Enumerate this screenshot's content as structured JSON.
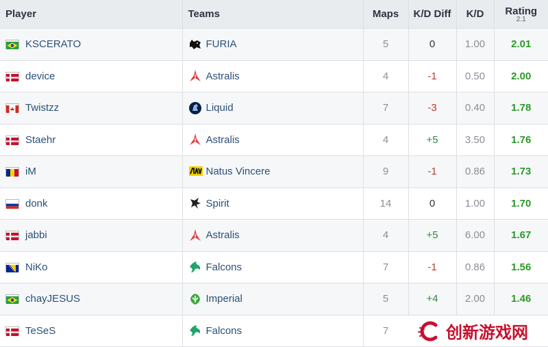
{
  "headers": {
    "player": "Player",
    "teams": "Teams",
    "maps": "Maps",
    "kd_diff": "K/D Diff",
    "kd": "K/D",
    "rating": "Rating",
    "rating_version": "2.1"
  },
  "rows": [
    {
      "player": "KSCERATO",
      "flag": "br",
      "team": "FURIA",
      "team_icon": "furia-panther-icon",
      "maps": "5",
      "kd_diff": "0",
      "kd": "1.00",
      "rating": "2.01"
    },
    {
      "player": "device",
      "flag": "dk",
      "team": "Astralis",
      "team_icon": "astralis-star-icon",
      "maps": "4",
      "kd_diff": "-1",
      "kd": "0.50",
      "rating": "2.00"
    },
    {
      "player": "Twistzz",
      "flag": "ca",
      "team": "Liquid",
      "team_icon": "liquid-horse-icon",
      "maps": "7",
      "kd_diff": "-3",
      "kd": "0.40",
      "rating": "1.78"
    },
    {
      "player": "Staehr",
      "flag": "dk",
      "team": "Astralis",
      "team_icon": "astralis-star-icon",
      "maps": "4",
      "kd_diff": "+5",
      "kd": "3.50",
      "rating": "1.76"
    },
    {
      "player": "iM",
      "flag": "ro",
      "team": "Natus Vincere",
      "team_icon": "navi-icon",
      "maps": "9",
      "kd_diff": "-1",
      "kd": "0.86",
      "rating": "1.73"
    },
    {
      "player": "donk",
      "flag": "ru",
      "team": "Spirit",
      "team_icon": "spirit-dragon-icon",
      "maps": "14",
      "kd_diff": "0",
      "kd": "1.00",
      "rating": "1.70"
    },
    {
      "player": "jabbi",
      "flag": "dk",
      "team": "Astralis",
      "team_icon": "astralis-star-icon",
      "maps": "4",
      "kd_diff": "+5",
      "kd": "6.00",
      "rating": "1.67"
    },
    {
      "player": "NiKo",
      "flag": "ba",
      "team": "Falcons",
      "team_icon": "falcons-icon",
      "maps": "7",
      "kd_diff": "-1",
      "kd": "0.86",
      "rating": "1.56"
    },
    {
      "player": "chayJESUS",
      "flag": "br",
      "team": "Imperial",
      "team_icon": "imperial-icon",
      "maps": "5",
      "kd_diff": "+4",
      "kd": "2.00",
      "rating": "1.46"
    },
    {
      "player": "TeSeS",
      "flag": "dk",
      "team": "Falcons",
      "team_icon": "falcons-icon",
      "maps": "7",
      "kd_diff": "",
      "kd": "",
      "rating": ""
    }
  ],
  "colors": {
    "header_bg": "#e9ecef",
    "link": "#2c4f77",
    "rating_green": "#2a9a26",
    "negative_red": "#c0392b",
    "positive_green": "#2e8b3d"
  },
  "watermark": {
    "text": "创新游戏网",
    "icon": "brand-c-logo-icon"
  }
}
